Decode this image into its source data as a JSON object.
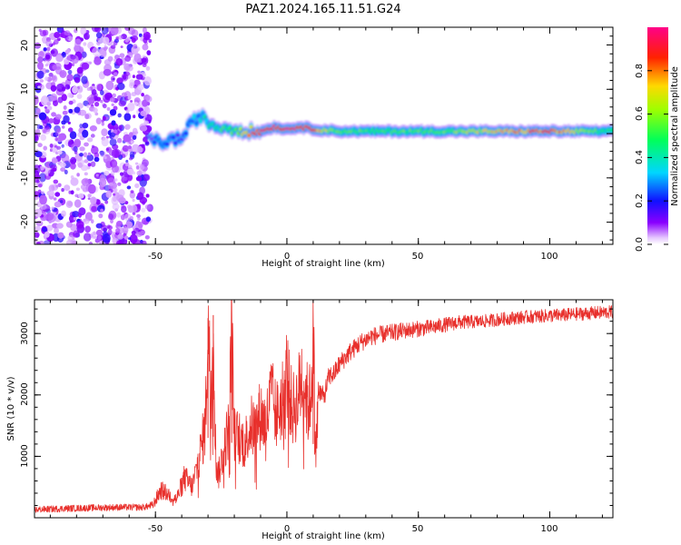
{
  "title": "PAZ1.2024.165.11.51.G24",
  "chart_data": [
    {
      "type": "heatmap",
      "xlabel": "Height of straight line (km)",
      "ylabel": "Frequency (Hz)",
      "xlim": [
        -96,
        124
      ],
      "ylim": [
        -25,
        24
      ],
      "x_ticks": [
        -50,
        0,
        50,
        100
      ],
      "x_tick_labels": [
        "-50",
        "0",
        "50",
        "100"
      ],
      "y_ticks": [
        -20,
        -10,
        0,
        10,
        20
      ],
      "y_tick_labels": [
        "-20",
        "-10",
        "0",
        "10",
        "20"
      ],
      "colorbar": {
        "label": "Normalized spectral amplitude",
        "range": [
          0,
          1
        ],
        "ticks": [
          0.0,
          0.2,
          0.4,
          0.6,
          0.8
        ],
        "tick_labels": [
          "0.0",
          "0.2",
          "0.4",
          "0.6",
          "0.8"
        ],
        "colormap": "gist_rainbow_r"
      },
      "ridge": {
        "x": [
          -52,
          -48,
          -44,
          -40,
          -36,
          -33,
          -30,
          -27,
          -24,
          -21,
          -18,
          -15,
          -10,
          -5,
          0,
          5,
          10,
          20,
          40,
          60,
          80,
          100,
          124
        ],
        "y": [
          -1.5,
          -2.0,
          -1.5,
          -1.0,
          2.5,
          4.0,
          2.5,
          1.5,
          1.5,
          1.0,
          1.0,
          0.5,
          0.5,
          1.5,
          1.0,
          1.5,
          1.0,
          0.5,
          0.5,
          0.5,
          0.5,
          0.5,
          0.5
        ],
        "amplitude": [
          0.15,
          0.25,
          0.2,
          0.15,
          0.3,
          0.3,
          0.4,
          0.4,
          0.5,
          0.5,
          0.6,
          0.7,
          0.9,
          0.9,
          0.9,
          0.9,
          0.85,
          0.5,
          0.5,
          0.55,
          0.7,
          0.85,
          0.4
        ]
      },
      "noise_region_x": [
        -96,
        -52
      ]
    },
    {
      "type": "line",
      "xlabel": "Height of straight line (km)",
      "ylabel": "SNR (10 * v/v)",
      "xlim": [
        -96,
        124
      ],
      "ylim": [
        0,
        3550
      ],
      "x_ticks": [
        -50,
        0,
        50,
        100
      ],
      "x_tick_labels": [
        "-50",
        "0",
        "50",
        "100"
      ],
      "y_ticks": [
        1000,
        2000,
        3000
      ],
      "y_tick_labels": [
        "1000",
        "2000",
        "3000"
      ],
      "line_color": "#e8302c",
      "series": [
        {
          "x": [
            -96,
            -85,
            -75,
            -65,
            -55,
            -51,
            -48,
            -45,
            -42,
            -39,
            -36,
            -33,
            -31,
            -30,
            -29,
            -28,
            -27,
            -26,
            -24,
            -22,
            -21,
            -20,
            -18,
            -16,
            -14,
            -12,
            -10,
            -8,
            -6,
            -4,
            -2,
            0,
            2,
            4,
            6,
            8,
            9,
            10,
            11,
            12,
            14,
            16,
            18,
            20,
            24,
            28,
            32,
            38,
            45,
            55,
            65,
            75,
            85,
            95,
            105,
            115,
            124
          ],
          "y": [
            130,
            150,
            160,
            170,
            170,
            200,
            450,
            380,
            300,
            650,
            500,
            1050,
            1500,
            3250,
            2000,
            3300,
            900,
            700,
            1100,
            1500,
            3050,
            1350,
            1300,
            1200,
            1500,
            1450,
            1700,
            1500,
            2000,
            1650,
            1900,
            2350,
            1750,
            1900,
            2400,
            1800,
            1950,
            3000,
            1000,
            2100,
            1950,
            2300,
            2350,
            2500,
            2700,
            2850,
            2950,
            3000,
            3050,
            3100,
            3180,
            3200,
            3250,
            3280,
            3300,
            3330,
            3350
          ]
        }
      ]
    }
  ]
}
